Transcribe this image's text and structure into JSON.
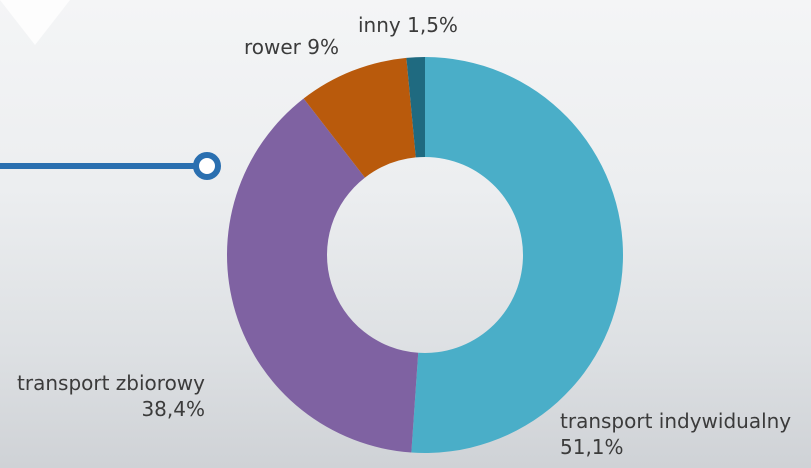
{
  "chart_data": {
    "type": "donut",
    "categories": [
      "transport indywidualny",
      "transport zbiorowy",
      "rower",
      "inny"
    ],
    "values": [
      51.1,
      38.4,
      9,
      1.5
    ],
    "value_labels": [
      "51,1%",
      "38,4%",
      "9%",
      "1,5%"
    ],
    "colors": [
      "#4aaec8",
      "#7f62a2",
      "#b95a0c",
      "#1f6a80"
    ]
  }
}
